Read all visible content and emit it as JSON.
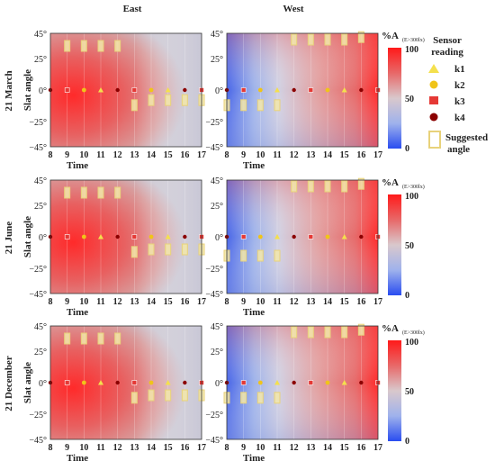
{
  "column_headers": [
    "East",
    "West"
  ],
  "row_labels": [
    "21 March",
    "21 June",
    "21 December"
  ],
  "colorbar": {
    "title_main": "%A",
    "title_sub": "(E>300lx)",
    "ticks": [
      "100",
      "50",
      "0"
    ]
  },
  "legend": {
    "title_line1": "Sensor",
    "title_line2": "reading",
    "items": [
      {
        "label": "k1",
        "marker": "triangle",
        "color": "#f4e04d"
      },
      {
        "label": "k2",
        "marker": "circle",
        "color": "#f0c419"
      },
      {
        "label": "k3",
        "marker": "square",
        "color": "#e53935"
      },
      {
        "label": "k4",
        "marker": "circle",
        "color": "#8b0000"
      }
    ],
    "suggested_line1": "Suggested",
    "suggested_line2": "angle",
    "suggested_color": "#e8d27a"
  },
  "chart_data": [
    {
      "type": "heatmap",
      "panel": "21 March - East",
      "xlabel": "Time",
      "ylabel": "Slat angle",
      "x_ticks": [
        "8",
        "9",
        "10",
        "11",
        "12",
        "13",
        "14",
        "15",
        "16",
        "17"
      ],
      "y_ticks": [
        "45°",
        "25°",
        "0°",
        "−25°",
        "−45°"
      ],
      "xlim": [
        8,
        17
      ],
      "ylim": [
        -45,
        45
      ],
      "colorbar_range": [
        0,
        100
      ],
      "suggested_angles": [
        {
          "time": 9,
          "angle": 35
        },
        {
          "time": 10,
          "angle": 35
        },
        {
          "time": 11,
          "angle": 35
        },
        {
          "time": 12,
          "angle": 35
        },
        {
          "time": 13,
          "angle": -12
        },
        {
          "time": 14,
          "angle": -8
        },
        {
          "time": 15,
          "angle": -8
        },
        {
          "time": 16,
          "angle": -8
        },
        {
          "time": 17,
          "angle": -8
        }
      ]
    },
    {
      "type": "heatmap",
      "panel": "21 March - West",
      "xlabel": "Time",
      "ylabel": "Slat angle",
      "x_ticks": [
        "8",
        "9",
        "10",
        "11",
        "12",
        "13",
        "14",
        "15",
        "16",
        "17"
      ],
      "y_ticks": [
        "45°",
        "25°",
        "0°",
        "−25°",
        "−45°"
      ],
      "xlim": [
        8,
        17
      ],
      "ylim": [
        -45,
        45
      ],
      "colorbar_range": [
        0,
        100
      ],
      "suggested_angles": [
        {
          "time": 8,
          "angle": -12
        },
        {
          "time": 9,
          "angle": -12
        },
        {
          "time": 10,
          "angle": -12
        },
        {
          "time": 11,
          "angle": -12
        },
        {
          "time": 12,
          "angle": 40
        },
        {
          "time": 13,
          "angle": 40
        },
        {
          "time": 14,
          "angle": 40
        },
        {
          "time": 15,
          "angle": 40
        },
        {
          "time": 16,
          "angle": 42
        }
      ]
    },
    {
      "type": "heatmap",
      "panel": "21 June - East",
      "xlabel": "Time",
      "ylabel": "Slat angle",
      "x_ticks": [
        "8",
        "9",
        "10",
        "11",
        "12",
        "13",
        "14",
        "15",
        "16",
        "17"
      ],
      "y_ticks": [
        "45°",
        "25°",
        "0°",
        "−25°",
        "−45°"
      ],
      "xlim": [
        8,
        17
      ],
      "ylim": [
        -45,
        45
      ],
      "colorbar_range": [
        0,
        100
      ],
      "suggested_angles": [
        {
          "time": 9,
          "angle": 35
        },
        {
          "time": 10,
          "angle": 35
        },
        {
          "time": 11,
          "angle": 35
        },
        {
          "time": 12,
          "angle": 35
        },
        {
          "time": 13,
          "angle": -12
        },
        {
          "time": 14,
          "angle": -10
        },
        {
          "time": 15,
          "angle": -10
        },
        {
          "time": 16,
          "angle": -10
        },
        {
          "time": 17,
          "angle": -10
        }
      ]
    },
    {
      "type": "heatmap",
      "panel": "21 June - West",
      "xlabel": "Time",
      "ylabel": "Slat angle",
      "x_ticks": [
        "8",
        "9",
        "10",
        "11",
        "12",
        "13",
        "14",
        "15",
        "16",
        "17"
      ],
      "y_ticks": [
        "45°",
        "25°",
        "0°",
        "−25°",
        "−45°"
      ],
      "xlim": [
        8,
        17
      ],
      "ylim": [
        -45,
        45
      ],
      "colorbar_range": [
        0,
        100
      ],
      "suggested_angles": [
        {
          "time": 8,
          "angle": -15
        },
        {
          "time": 9,
          "angle": -15
        },
        {
          "time": 10,
          "angle": -15
        },
        {
          "time": 11,
          "angle": -15
        },
        {
          "time": 12,
          "angle": 40
        },
        {
          "time": 13,
          "angle": 40
        },
        {
          "time": 14,
          "angle": 40
        },
        {
          "time": 15,
          "angle": 40
        },
        {
          "time": 16,
          "angle": 42
        }
      ]
    },
    {
      "type": "heatmap",
      "panel": "21 December - East",
      "xlabel": "Time",
      "ylabel": "Slat angle",
      "x_ticks": [
        "8",
        "9",
        "10",
        "11",
        "12",
        "13",
        "14",
        "15",
        "16",
        "17"
      ],
      "y_ticks": [
        "45°",
        "25°",
        "0°",
        "−25°",
        "−45°"
      ],
      "xlim": [
        8,
        17
      ],
      "ylim": [
        -45,
        45
      ],
      "colorbar_range": [
        0,
        100
      ],
      "suggested_angles": [
        {
          "time": 9,
          "angle": 35
        },
        {
          "time": 10,
          "angle": 35
        },
        {
          "time": 11,
          "angle": 35
        },
        {
          "time": 12,
          "angle": 35
        },
        {
          "time": 13,
          "angle": -12
        },
        {
          "time": 14,
          "angle": -10
        },
        {
          "time": 15,
          "angle": -10
        },
        {
          "time": 16,
          "angle": -10
        },
        {
          "time": 17,
          "angle": -10
        }
      ]
    },
    {
      "type": "heatmap",
      "panel": "21 December - West",
      "xlabel": "Time",
      "ylabel": "Slat angle",
      "x_ticks": [
        "8",
        "9",
        "10",
        "11",
        "12",
        "13",
        "14",
        "15",
        "16",
        "17"
      ],
      "y_ticks": [
        "45°",
        "25°",
        "0°",
        "−25°",
        "−45°"
      ],
      "xlim": [
        8,
        17
      ],
      "ylim": [
        -45,
        45
      ],
      "colorbar_range": [
        0,
        100
      ],
      "suggested_angles": [
        {
          "time": 8,
          "angle": -12
        },
        {
          "time": 9,
          "angle": -12
        },
        {
          "time": 10,
          "angle": -12
        },
        {
          "time": 11,
          "angle": -12
        },
        {
          "time": 12,
          "angle": 40
        },
        {
          "time": 13,
          "angle": 40
        },
        {
          "time": 14,
          "angle": 40
        },
        {
          "time": 15,
          "angle": 40
        },
        {
          "time": 16,
          "angle": 42
        }
      ]
    }
  ]
}
